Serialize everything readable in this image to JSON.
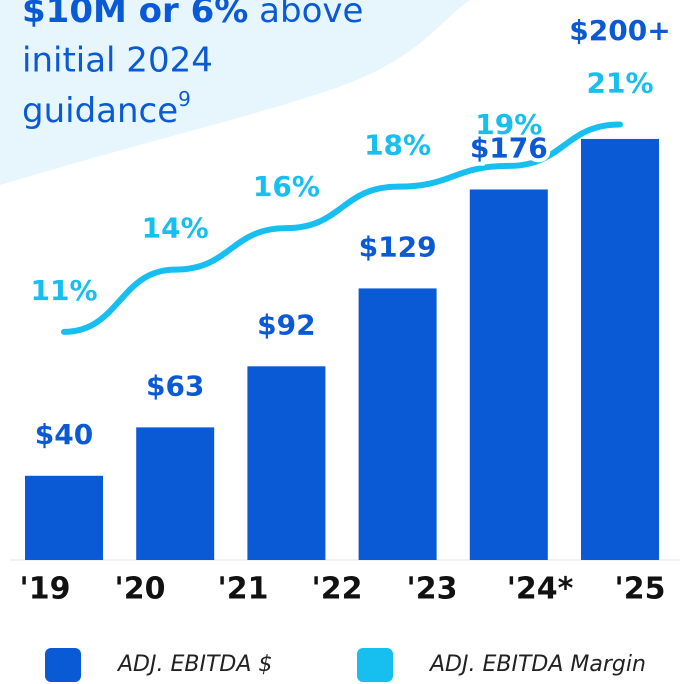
{
  "chart_data": {
    "type": "bar-line",
    "annotation": {
      "highlight": "$10M or 6%",
      "rest": "above",
      "line2": "initial 2024",
      "line3": "guidance",
      "footnote": "9"
    },
    "categories": [
      "'19",
      "'20",
      "'21",
      "'22",
      "'23",
      "'24*",
      "'25"
    ],
    "series": [
      {
        "name": "ADJ. EBITDA $",
        "color": "#0b5ad5",
        "type": "bar",
        "values": [
          null,
          40,
          63,
          92,
          129,
          176,
          200
        ],
        "value_labels": [
          null,
          "$40",
          "$63",
          "$92",
          "$129",
          "$176",
          "$200+"
        ]
      },
      {
        "name": "ADJ. EBITDA Margin",
        "color": "#16bff0",
        "type": "line",
        "axis": "y2",
        "values": [
          null,
          11,
          14,
          16,
          18,
          19,
          21
        ],
        "value_labels": [
          null,
          "11%",
          "14%",
          "16%",
          "18%",
          "19%",
          "21%"
        ]
      }
    ],
    "ylim": [
      0,
      266
    ],
    "y2lim": [
      0,
      27
    ]
  }
}
